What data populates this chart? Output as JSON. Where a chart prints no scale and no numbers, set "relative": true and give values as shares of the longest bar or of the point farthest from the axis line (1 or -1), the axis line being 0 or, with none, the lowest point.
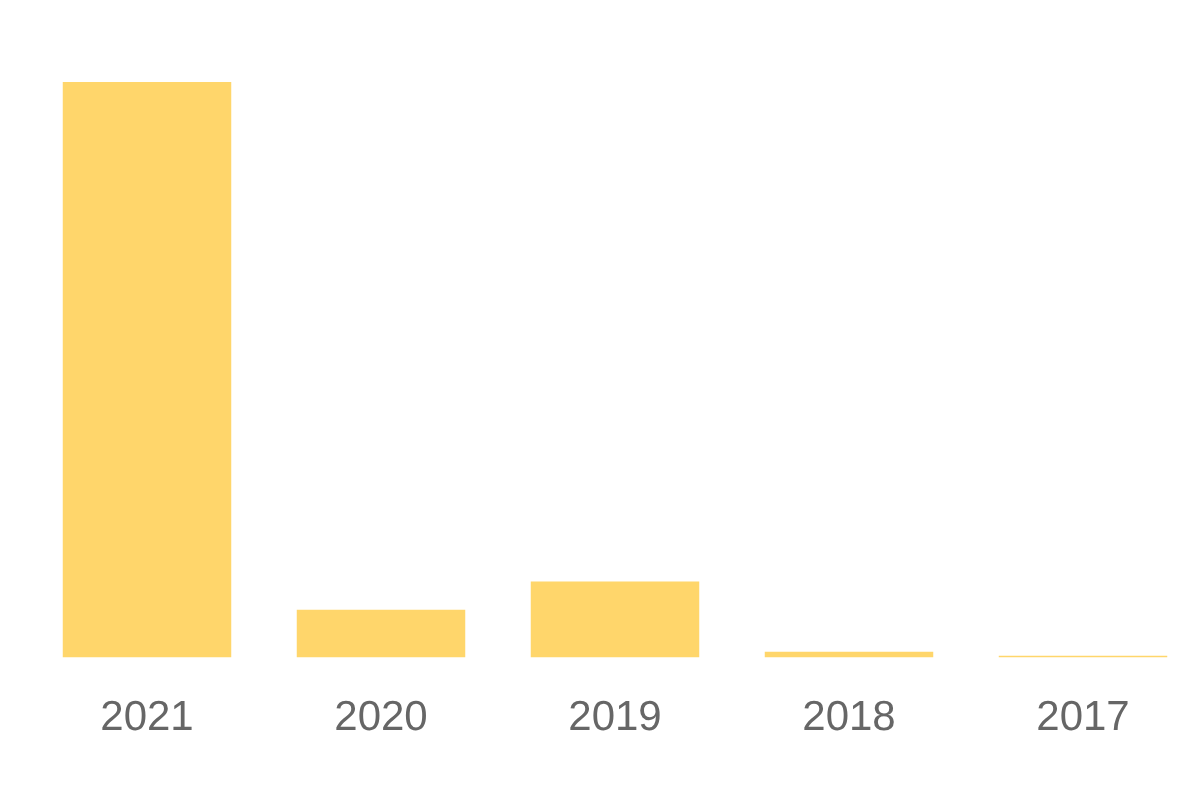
{
  "chart_data": {
    "type": "bar",
    "relative": true,
    "categories": [
      "2021",
      "2020",
      "2019",
      "2018",
      "2017"
    ],
    "values": [
      1,
      0.083,
      0.132,
      0.01,
      0.003
    ],
    "color": "#ffd66b",
    "grid": false,
    "legend": false
  }
}
